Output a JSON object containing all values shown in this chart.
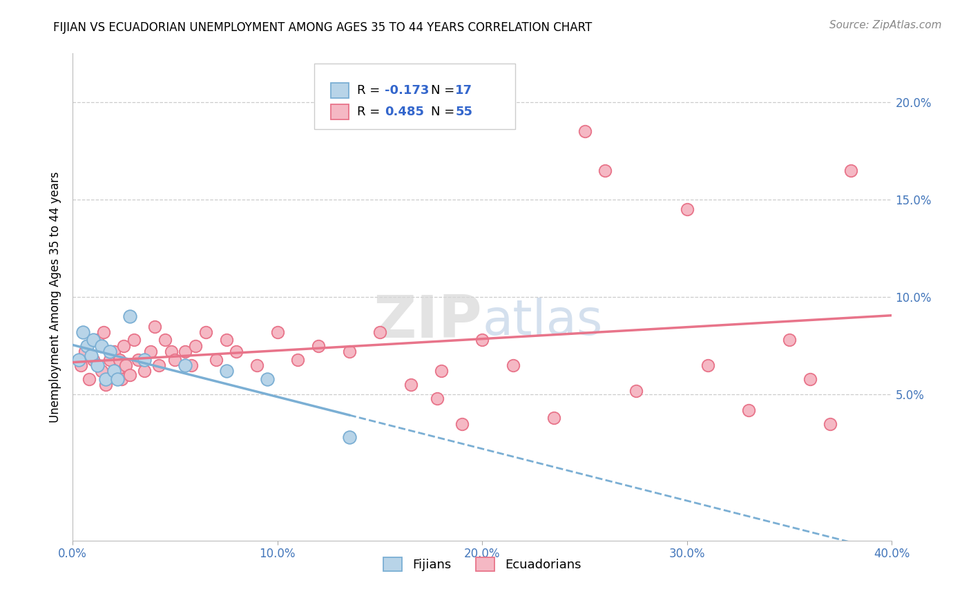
{
  "title": "FIJIAN VS ECUADORIAN UNEMPLOYMENT AMONG AGES 35 TO 44 YEARS CORRELATION CHART",
  "source": "Source: ZipAtlas.com",
  "ylabel": "Unemployment Among Ages 35 to 44 years",
  "fijian_R": -0.173,
  "fijian_N": 17,
  "ecuadorian_R": 0.485,
  "ecuadorian_N": 55,
  "fijian_color": "#7bafd4",
  "ecuadorian_color": "#e8748a",
  "fijian_color_fill": "#b8d4e8",
  "ecuadorian_color_fill": "#f5b8c4",
  "xlim": [
    0.0,
    0.4
  ],
  "ylim": [
    -0.025,
    0.225
  ],
  "fijian_points": [
    [
      0.003,
      0.068
    ],
    [
      0.005,
      0.082
    ],
    [
      0.007,
      0.075
    ],
    [
      0.009,
      0.07
    ],
    [
      0.01,
      0.078
    ],
    [
      0.012,
      0.065
    ],
    [
      0.014,
      0.075
    ],
    [
      0.016,
      0.058
    ],
    [
      0.018,
      0.072
    ],
    [
      0.02,
      0.062
    ],
    [
      0.022,
      0.058
    ],
    [
      0.028,
      0.09
    ],
    [
      0.035,
      0.068
    ],
    [
      0.055,
      0.065
    ],
    [
      0.075,
      0.062
    ],
    [
      0.095,
      0.058
    ],
    [
      0.135,
      0.028
    ]
  ],
  "ecuadorian_points": [
    [
      0.004,
      0.065
    ],
    [
      0.006,
      0.072
    ],
    [
      0.008,
      0.058
    ],
    [
      0.01,
      0.068
    ],
    [
      0.012,
      0.078
    ],
    [
      0.014,
      0.062
    ],
    [
      0.015,
      0.082
    ],
    [
      0.016,
      0.055
    ],
    [
      0.018,
      0.068
    ],
    [
      0.02,
      0.072
    ],
    [
      0.022,
      0.062
    ],
    [
      0.023,
      0.068
    ],
    [
      0.024,
      0.058
    ],
    [
      0.025,
      0.075
    ],
    [
      0.026,
      0.065
    ],
    [
      0.028,
      0.06
    ],
    [
      0.03,
      0.078
    ],
    [
      0.032,
      0.068
    ],
    [
      0.035,
      0.062
    ],
    [
      0.038,
      0.072
    ],
    [
      0.04,
      0.085
    ],
    [
      0.042,
      0.065
    ],
    [
      0.045,
      0.078
    ],
    [
      0.048,
      0.072
    ],
    [
      0.05,
      0.068
    ],
    [
      0.055,
      0.072
    ],
    [
      0.058,
      0.065
    ],
    [
      0.06,
      0.075
    ],
    [
      0.065,
      0.082
    ],
    [
      0.07,
      0.068
    ],
    [
      0.075,
      0.078
    ],
    [
      0.08,
      0.072
    ],
    [
      0.09,
      0.065
    ],
    [
      0.1,
      0.082
    ],
    [
      0.11,
      0.068
    ],
    [
      0.12,
      0.075
    ],
    [
      0.135,
      0.072
    ],
    [
      0.15,
      0.082
    ],
    [
      0.165,
      0.055
    ],
    [
      0.178,
      0.048
    ],
    [
      0.18,
      0.062
    ],
    [
      0.19,
      0.035
    ],
    [
      0.2,
      0.078
    ],
    [
      0.215,
      0.065
    ],
    [
      0.235,
      0.038
    ],
    [
      0.25,
      0.185
    ],
    [
      0.26,
      0.165
    ],
    [
      0.275,
      0.052
    ],
    [
      0.3,
      0.145
    ],
    [
      0.31,
      0.065
    ],
    [
      0.33,
      0.042
    ],
    [
      0.35,
      0.078
    ],
    [
      0.36,
      0.058
    ],
    [
      0.37,
      0.035
    ],
    [
      0.38,
      0.165
    ]
  ]
}
